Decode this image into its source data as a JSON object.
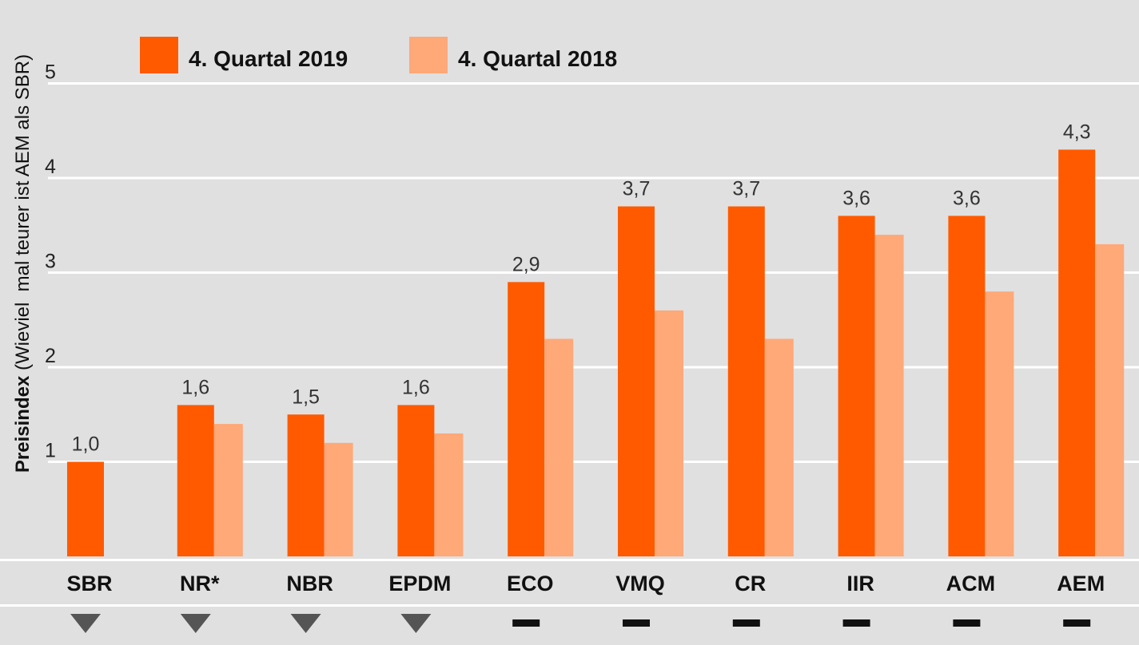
{
  "colors": {
    "series_2019": "#ff5a00",
    "series_2018": "#ffa878",
    "background": "#e0e0e0",
    "grid": "#ffffff",
    "marker": "#555555"
  },
  "chart_data": {
    "type": "bar",
    "ylabel_bold": "Preisindex",
    "ylabel_rest": " (Wieviel  mal teurer ist AEM als SBR)",
    "ylim": [
      0,
      5.25
    ],
    "yticks": [
      1,
      2,
      3,
      4,
      5
    ],
    "ytick_labels": [
      "1",
      "2",
      "3",
      "4",
      "5"
    ],
    "legend_position": "top-left",
    "categories": [
      "SBR",
      "NR*",
      "NBR",
      "EPDM",
      "ECO",
      "VMQ",
      "CR",
      "IIR",
      "ACM",
      "AEM"
    ],
    "series": [
      {
        "name": "4. Quartal 2019",
        "values": [
          1.0,
          1.6,
          1.5,
          1.6,
          2.9,
          3.7,
          3.7,
          3.6,
          3.6,
          4.3
        ],
        "labels": [
          "1,0",
          "1,6",
          "1,5",
          "1,6",
          "2,9",
          "3,7",
          "3,7",
          "3,6",
          "3,6",
          "4,3"
        ]
      },
      {
        "name": "4. Quartal 2018",
        "values": [
          null,
          1.4,
          1.2,
          1.3,
          2.3,
          2.6,
          2.3,
          3.4,
          2.8,
          3.3
        ],
        "labels": []
      }
    ],
    "trend_markers": [
      "down",
      "down",
      "down",
      "down",
      "flat",
      "flat",
      "flat",
      "flat",
      "flat",
      "flat"
    ]
  }
}
